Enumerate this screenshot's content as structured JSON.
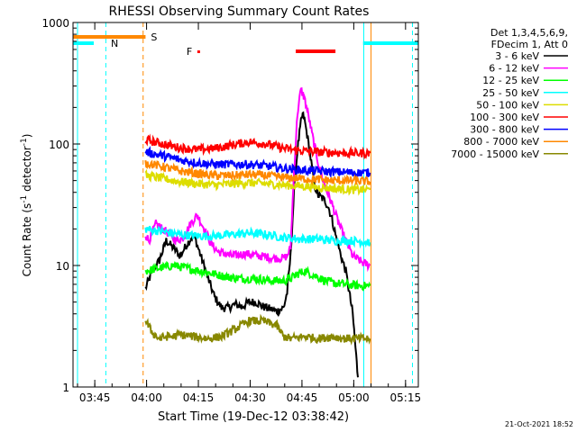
{
  "chart_data": {
    "type": "line",
    "title": "RHESSI Observing Summary Count Rates",
    "xlabel": "Start Time (19-Dec-12 03:38:42)",
    "ylabel": "Count Rate (s⁻¹ detector⁻¹)",
    "ylabel_parts": {
      "main": "Count Rate (s",
      "sup1": "-1",
      "mid": " detector",
      "sup2": "-1",
      "end": ")"
    },
    "x_unit": "minutes since 03:38:42",
    "xlim": [
      0,
      100
    ],
    "ylim": [
      1,
      1000
    ],
    "yscale": "log",
    "x_ticks": [
      {
        "x": 6.3,
        "label": "03:45"
      },
      {
        "x": 21.3,
        "label": "04:00"
      },
      {
        "x": 36.3,
        "label": "04:15"
      },
      {
        "x": 51.3,
        "label": "04:30"
      },
      {
        "x": 66.3,
        "label": "04:45"
      },
      {
        "x": 81.3,
        "label": "05:00"
      },
      {
        "x": 96.3,
        "label": "05:15"
      }
    ],
    "y_ticks": [
      {
        "y": 1,
        "label": "1"
      },
      {
        "y": 10,
        "label": "10"
      },
      {
        "y": 100,
        "label": "100"
      },
      {
        "y": 1000,
        "label": "1000"
      }
    ],
    "legend": {
      "placement": "right",
      "header_lines": [
        "Det 1,3,4,5,6,9,",
        "FDecim 1, Att 0"
      ],
      "entries": [
        {
          "label": "3 - 6 keV",
          "color": "#000000"
        },
        {
          "label": "6 - 12 keV",
          "color": "#ff00ff"
        },
        {
          "label": "12 - 25 keV",
          "color": "#00ff00"
        },
        {
          "label": "25 - 50 keV",
          "color": "#00ffff"
        },
        {
          "label": "50 - 100 keV",
          "color": "#dddd00"
        },
        {
          "label": "100 - 300 keV",
          "color": "#ff0000"
        },
        {
          "label": "300 - 800 keV",
          "color": "#0000ff"
        },
        {
          "label": "800 - 7000 keV",
          "color": "#ff8800"
        },
        {
          "label": "7000 - 15000 keV",
          "color": "#888800"
        }
      ]
    },
    "series": [
      {
        "name": "3 - 6 keV",
        "color": "#000000",
        "x": [
          21,
          23,
          25,
          27,
          29,
          31,
          33,
          35,
          37,
          39,
          41,
          43,
          45,
          47,
          49,
          51,
          53,
          55,
          57,
          59,
          61,
          62,
          63,
          64,
          65,
          66,
          66.5,
          67,
          68,
          69,
          70,
          71,
          72,
          73,
          74,
          75,
          76,
          77,
          78,
          79,
          80,
          81,
          82,
          82.5
        ],
        "y": [
          6.5,
          9,
          11,
          16,
          14,
          12,
          15,
          18,
          12,
          8,
          5.5,
          4.5,
          4.5,
          4.8,
          4.6,
          5,
          5,
          4.6,
          4.4,
          4.2,
          4.5,
          6,
          12,
          40,
          90,
          150,
          175,
          160,
          110,
          70,
          45,
          38,
          36,
          34,
          30,
          24,
          18,
          14,
          11,
          9,
          6,
          4,
          1.8,
          1.2
        ]
      },
      {
        "name": "6 - 12 keV",
        "color": "#ff00ff",
        "x": [
          21,
          22,
          24,
          26,
          28,
          30,
          32,
          34,
          36,
          38,
          40,
          42,
          46,
          50,
          54,
          58,
          61,
          62,
          63,
          64,
          65,
          66,
          67,
          68,
          69,
          70,
          71,
          72,
          73,
          75,
          77,
          79,
          81,
          84,
          86
        ],
        "y": [
          18,
          16,
          22,
          20,
          18,
          16,
          17,
          22,
          26,
          20,
          15,
          13,
          12,
          12.5,
          12,
          11.5,
          11.5,
          12,
          14,
          60,
          180,
          280,
          240,
          180,
          130,
          95,
          70,
          55,
          45,
          32,
          22,
          16,
          12,
          10.5,
          10
        ]
      },
      {
        "name": "12 - 25 keV",
        "color": "#00ff00",
        "x": [
          21,
          25,
          29,
          33,
          37,
          41,
          45,
          49,
          53,
          57,
          61,
          63,
          65,
          67,
          69,
          71,
          73,
          75,
          79,
          83,
          86
        ],
        "y": [
          9,
          9.5,
          10,
          9.5,
          9,
          8.5,
          8,
          7.8,
          7.8,
          7.5,
          7.5,
          7.8,
          8.5,
          9,
          8.5,
          8,
          7.5,
          7.2,
          7,
          6.8,
          6.8
        ]
      },
      {
        "name": "25 - 50 keV",
        "color": "#00ffff",
        "x": [
          21,
          26,
          31,
          36,
          41,
          46,
          51,
          56,
          61,
          66,
          71,
          76,
          81,
          86
        ],
        "y": [
          20,
          19,
          18,
          17.5,
          17.5,
          18,
          18.5,
          18,
          17,
          16.5,
          16.5,
          16,
          16,
          15.5
        ]
      },
      {
        "name": "50 - 100 keV",
        "color": "#dddd00",
        "x": [
          21,
          26,
          31,
          36,
          41,
          46,
          51,
          56,
          61,
          66,
          71,
          76,
          81,
          86
        ],
        "y": [
          55,
          52,
          49,
          47,
          46,
          47,
          48,
          47,
          46,
          45,
          44,
          43,
          42,
          42
        ]
      },
      {
        "name": "100 - 300 keV",
        "color": "#ff0000",
        "x": [
          21,
          26,
          31,
          36,
          41,
          46,
          51,
          56,
          61,
          66,
          71,
          76,
          81,
          86
        ],
        "y": [
          108,
          100,
          93,
          90,
          92,
          98,
          104,
          100,
          92,
          88,
          86,
          85,
          84,
          84
        ]
      },
      {
        "name": "300 - 800 keV",
        "color": "#0000ff",
        "x": [
          21,
          26,
          31,
          36,
          41,
          46,
          51,
          56,
          61,
          66,
          71,
          76,
          81,
          86
        ],
        "y": [
          86,
          80,
          74,
          70,
          68,
          68,
          68,
          66,
          63,
          61,
          60,
          59,
          58,
          58
        ]
      },
      {
        "name": "800 - 7000 keV",
        "color": "#ff8800",
        "x": [
          21,
          26,
          31,
          36,
          41,
          46,
          51,
          56,
          61,
          66,
          71,
          76,
          81,
          86
        ],
        "y": [
          70,
          65,
          60,
          57,
          55,
          55,
          56,
          55,
          53,
          52,
          51,
          50,
          50,
          49
        ]
      },
      {
        "name": "7000 - 15000 keV",
        "color": "#888800",
        "x": [
          21,
          23,
          25,
          27,
          29,
          31,
          35,
          39,
          43,
          47,
          51,
          55,
          59,
          61,
          63,
          67,
          71,
          75,
          79,
          83,
          86
        ],
        "y": [
          3.5,
          2.8,
          2.5,
          2.6,
          2.6,
          2.7,
          2.6,
          2.5,
          2.6,
          3,
          3.5,
          3.5,
          3.2,
          2.6,
          2.5,
          2.6,
          2.5,
          2.6,
          2.5,
          2.5,
          2.5
        ]
      }
    ],
    "annotations": {
      "saa_bar": {
        "x0": 0,
        "x1": 21,
        "color": "#ff8800",
        "label": "S"
      },
      "night_bars": [
        {
          "x0": 0,
          "x1": 6,
          "color": "#00ffff",
          "label": "N"
        },
        {
          "x0": 84,
          "x1": 100,
          "color": "#00ffff",
          "label": ""
        }
      ],
      "flare_marker": {
        "x": 36,
        "color": "#ff0000",
        "label": "F"
      },
      "flare_bar": {
        "x0": 64.5,
        "x1": 76,
        "color": "#ff0000"
      },
      "vlines": [
        {
          "x": 1.3,
          "color": "#00ffff",
          "style": "solid"
        },
        {
          "x": 9.5,
          "color": "#00ffff",
          "style": "dashed"
        },
        {
          "x": 20.3,
          "color": "#ff8800",
          "style": "dashed"
        },
        {
          "x": 84.2,
          "color": "#00ffff",
          "style": "solid"
        },
        {
          "x": 98.3,
          "color": "#00ffff",
          "style": "dashed"
        },
        {
          "x": 86.3,
          "color": "#ff8800",
          "style": "solid"
        }
      ]
    }
  },
  "footer": {
    "date_stamp": "21-Oct-2021 18:52"
  }
}
